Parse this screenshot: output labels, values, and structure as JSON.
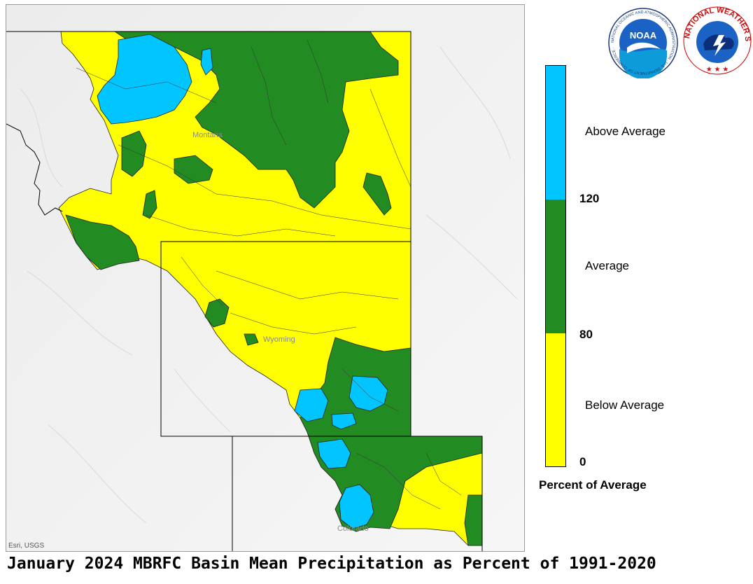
{
  "map": {
    "place_labels": {
      "montana": "Montana",
      "wyoming": "Wyoming",
      "colorado": "Colorado"
    },
    "attribution": "Esri, USGS"
  },
  "legend": {
    "classes": [
      {
        "label": "Above Average",
        "color": "#00c5ff"
      },
      {
        "label": "Average",
        "color": "#228b22"
      },
      {
        "label": "Below Average",
        "color": "#ffff00"
      }
    ],
    "breaks": [
      "120",
      "80",
      "0"
    ],
    "title": "Percent of Average"
  },
  "logos": {
    "noaa": {
      "center_text": "NOAA",
      "ring_text": "NATIONAL OCEANIC AND ATMOSPHERIC ADMINISTRATION · U.S. DEPARTMENT OF COMMERCE ·"
    },
    "nws": {
      "ring_text": "NATIONAL WEATHER SERVICE"
    }
  },
  "footer": {
    "title": "January 2024 MBRFC Basin Mean Precipitation as Percent of 1991-2020"
  }
}
